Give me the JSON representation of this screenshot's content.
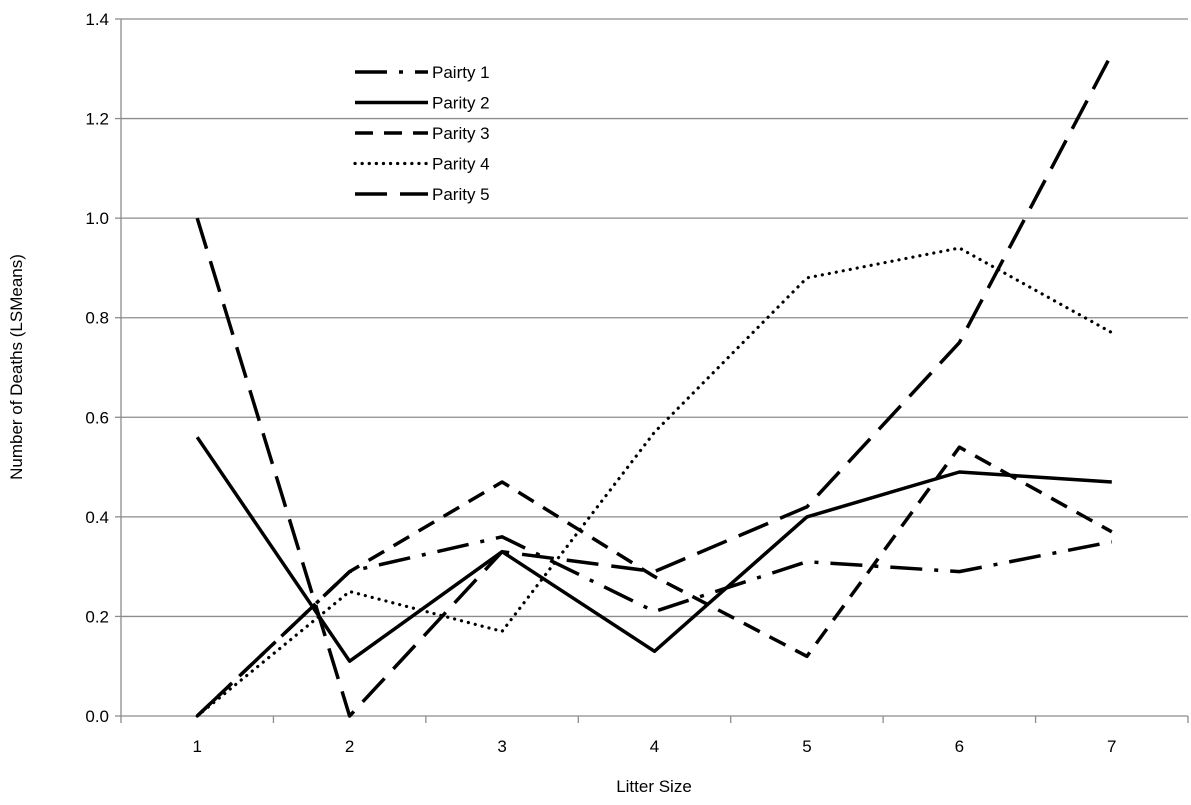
{
  "chart_data": {
    "type": "line",
    "title": "",
    "xlabel": "Litter Size",
    "ylabel": "Number of Deaths (LSMeans)",
    "x": [
      1,
      2,
      3,
      4,
      5,
      6,
      7
    ],
    "x_tick_labels": [
      "1",
      "2",
      "3",
      "4",
      "5",
      "6",
      "7"
    ],
    "ylim": [
      0,
      1.4
    ],
    "y_tick_labels": [
      "0.0",
      "0.2",
      "0.4",
      "0.6",
      "0.8",
      "1.0",
      "1.2",
      "1.4"
    ],
    "grid": "horizontal",
    "legend_position": "top-left",
    "series": [
      {
        "name": "Pairty 1",
        "dash": "dash-dot",
        "values": [
          0.0,
          0.29,
          0.36,
          0.21,
          0.31,
          0.29,
          0.35
        ]
      },
      {
        "name": "Parity 2",
        "dash": "solid",
        "values": [
          0.56,
          0.11,
          0.33,
          0.13,
          0.4,
          0.49,
          0.47
        ]
      },
      {
        "name": "Parity 3",
        "dash": "dash",
        "values": [
          0.0,
          0.29,
          0.47,
          0.28,
          0.12,
          0.54,
          0.37
        ]
      },
      {
        "name": "Parity 4",
        "dash": "dot",
        "values": [
          0.0,
          0.25,
          0.17,
          0.57,
          0.88,
          0.94,
          0.77
        ]
      },
      {
        "name": "Parity 5",
        "dash": "long-dash",
        "values": [
          1.0,
          0.0,
          0.33,
          0.29,
          0.42,
          0.75,
          1.33
        ]
      }
    ],
    "colors": {
      "line": "#000000",
      "grid": "#8c8c8c",
      "axis": "#8c8c8c"
    }
  }
}
